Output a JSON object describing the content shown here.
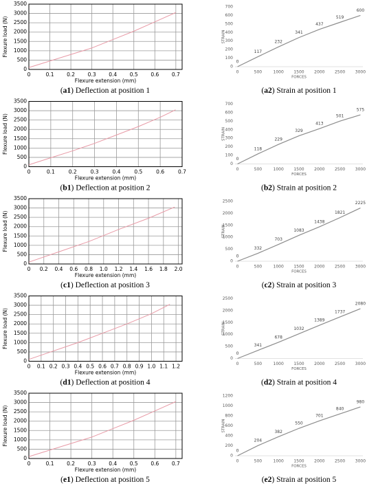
{
  "chart_data": [
    {
      "type": "line",
      "caption": [
        "(",
        "a1",
        ") Deflection at position 1"
      ],
      "xlabel": "Flexure extension (mm)",
      "ylabel": "Flexure load (N)",
      "grid": true,
      "color": "#e89aa6",
      "x": [
        0,
        0.1,
        0.2,
        0.3,
        0.4,
        0.5,
        0.6,
        0.7
      ],
      "values": [
        100,
        450,
        800,
        1150,
        1600,
        2050,
        2550,
        3050
      ],
      "xlim": [
        0,
        0.73
      ],
      "xticks": [
        0,
        0.1,
        0.2,
        0.3,
        0.4,
        0.5,
        0.6,
        0.7
      ],
      "ylim": [
        0,
        3500
      ],
      "yticks": [
        0,
        500,
        1000,
        1500,
        2000,
        2500,
        3000,
        3500
      ]
    },
    {
      "type": "line",
      "caption": [
        "(",
        "a2",
        ") Strain at position 1"
      ],
      "xlabel": "FORCES",
      "ylabel": "STRAIN",
      "data_labels": true,
      "color": "#8c8c8c",
      "x": [
        0,
        500,
        1000,
        1500,
        2000,
        2500,
        3000
      ],
      "values": [
        0,
        117,
        232,
        341,
        437,
        519,
        600
      ],
      "xlim": [
        -60,
        3060
      ],
      "xticks": [
        0,
        500,
        1000,
        1500,
        2000,
        2500,
        3000
      ],
      "ylim": [
        0,
        700
      ],
      "yticks": [
        0,
        100,
        200,
        300,
        400,
        500,
        600,
        700
      ]
    },
    {
      "type": "line",
      "caption": [
        "(",
        "b1",
        ") Deflection at position 2"
      ],
      "xlabel": "Flexure extension (mm)",
      "ylabel": "Flexure load (N)",
      "grid": true,
      "color": "#e89aa6",
      "x": [
        0,
        0.1,
        0.2,
        0.3,
        0.4,
        0.5,
        0.6,
        0.67
      ],
      "values": [
        100,
        480,
        850,
        1250,
        1700,
        2150,
        2650,
        3050
      ],
      "xlim": [
        0,
        0.7
      ],
      "xticks": [
        0,
        0.1,
        0.2,
        0.3,
        0.4,
        0.5,
        0.6,
        0.7
      ],
      "ylim": [
        0,
        3500
      ],
      "yticks": [
        0,
        500,
        1000,
        1500,
        2000,
        2500,
        3000,
        3500
      ]
    },
    {
      "type": "line",
      "caption": [
        "(",
        "b2",
        ") Strain at position 2"
      ],
      "xlabel": "FORCES",
      "ylabel": "STRAIN",
      "data_labels": true,
      "color": "#8c8c8c",
      "x": [
        0,
        500,
        1000,
        1500,
        2000,
        2500,
        3000
      ],
      "values": [
        0,
        118,
        229,
        329,
        413,
        501,
        575
      ],
      "xlim": [
        -60,
        3060
      ],
      "xticks": [
        0,
        500,
        1000,
        1500,
        2000,
        2500,
        3000
      ],
      "ylim": [
        0,
        700
      ],
      "yticks": [
        0,
        100,
        200,
        300,
        400,
        500,
        600,
        700
      ]
    },
    {
      "type": "line",
      "caption": [
        "(",
        "c1",
        ") Deflection at position 3"
      ],
      "xlabel": "Flexure extension (mm)",
      "ylabel": "Flexure load (N)",
      "grid": true,
      "color": "#e89aa6",
      "x": [
        0,
        0.4,
        0.8,
        1.2,
        1.6,
        1.95
      ],
      "values": [
        100,
        650,
        1200,
        1850,
        2450,
        3050
      ],
      "xlim": [
        0,
        2.05
      ],
      "xticks": [
        0,
        0.2,
        0.4,
        0.6,
        0.8,
        {
          "value": 1,
          "label": "1.0"
        },
        1.2,
        1.4,
        1.6,
        1.8,
        {
          "value": 2,
          "label": "2.0"
        }
      ],
      "ylim": [
        0,
        3500
      ],
      "yticks": [
        0,
        500,
        1000,
        1500,
        2000,
        2500,
        3000,
        3500
      ]
    },
    {
      "type": "line",
      "caption": [
        "(",
        "c2",
        ") Strain at position 3"
      ],
      "xlabel": "FORCES",
      "ylabel": "STRAIN",
      "data_labels": true,
      "color": "#8c8c8c",
      "x": [
        0,
        500,
        1000,
        1500,
        2000,
        2500,
        3000
      ],
      "values": [
        0,
        332,
        703,
        1083,
        1438,
        1821,
        2225
      ],
      "xlim": [
        -60,
        3060
      ],
      "xticks": [
        0,
        500,
        1000,
        1500,
        2000,
        2500,
        3000
      ],
      "ylim": [
        0,
        2500
      ],
      "yticks": [
        0,
        500,
        1000,
        1500,
        2000,
        2500
      ]
    },
    {
      "type": "line",
      "caption": [
        "(",
        "d1",
        ") Deflection at position 4"
      ],
      "xlabel": "Flexure extension (mm)",
      "ylabel": "Flexure load (N)",
      "grid": true,
      "color": "#e89aa6",
      "x": [
        0,
        0.2,
        0.4,
        0.6,
        0.8,
        1.0,
        1.15
      ],
      "values": [
        100,
        550,
        1000,
        1500,
        2000,
        2550,
        3050
      ],
      "xlim": [
        0,
        1.25
      ],
      "xticks": [
        0,
        0.1,
        0.2,
        0.3,
        0.4,
        0.5,
        0.6,
        0.7,
        0.8,
        0.9,
        {
          "value": 1,
          "label": "1.0"
        },
        1.1,
        1.2
      ],
      "ylim": [
        0,
        3500
      ],
      "yticks": [
        0,
        500,
        1000,
        1500,
        2000,
        2500,
        3000,
        3500
      ]
    },
    {
      "type": "line",
      "caption": [
        "(",
        "d2",
        ") Strain at position 4"
      ],
      "xlabel": "FORCES",
      "ylabel": "STRAIN",
      "data_labels": true,
      "color": "#8c8c8c",
      "x": [
        0,
        500,
        1000,
        1500,
        2000,
        2500,
        3000
      ],
      "values": [
        0,
        341,
        678,
        1032,
        1389,
        1737,
        2080
      ],
      "xlim": [
        -60,
        3060
      ],
      "xticks": [
        0,
        500,
        1000,
        1500,
        2000,
        2500,
        3000
      ],
      "ylim": [
        0,
        2500
      ],
      "yticks": [
        0,
        500,
        1000,
        1500,
        2000,
        2500
      ]
    },
    {
      "type": "line",
      "caption": [
        "(",
        "e1",
        ") Deflection at position 5"
      ],
      "xlabel": "Flexure extension (mm)",
      "ylabel": "Flexure load (N)",
      "grid": true,
      "color": "#e89aa6",
      "x": [
        0,
        0.1,
        0.2,
        0.3,
        0.4,
        0.5,
        0.6,
        0.7
      ],
      "values": [
        100,
        450,
        800,
        1150,
        1600,
        2050,
        2550,
        3050
      ],
      "xlim": [
        0,
        0.73
      ],
      "xticks": [
        0,
        0.1,
        0.2,
        0.3,
        0.4,
        0.5,
        0.6,
        0.7
      ],
      "ylim": [
        0,
        3500
      ],
      "yticks": [
        0,
        500,
        1000,
        1500,
        2000,
        2500,
        3000,
        3500
      ]
    },
    {
      "type": "line",
      "caption": [
        "(",
        "e2",
        ") Strain at position 5"
      ],
      "xlabel": "FORCES",
      "ylabel": "STRAIN",
      "data_labels": true,
      "color": "#8c8c8c",
      "x": [
        0,
        500,
        1000,
        1500,
        2000,
        2500,
        3000
      ],
      "values": [
        0,
        204,
        382,
        550,
        701,
        840,
        980
      ],
      "xlim": [
        -60,
        3060
      ],
      "xticks": [
        0,
        500,
        1000,
        1500,
        2000,
        2500,
        3000
      ],
      "ylim": [
        0,
        1200
      ],
      "yticks": [
        0,
        200,
        400,
        600,
        800,
        1000,
        1200
      ]
    }
  ]
}
